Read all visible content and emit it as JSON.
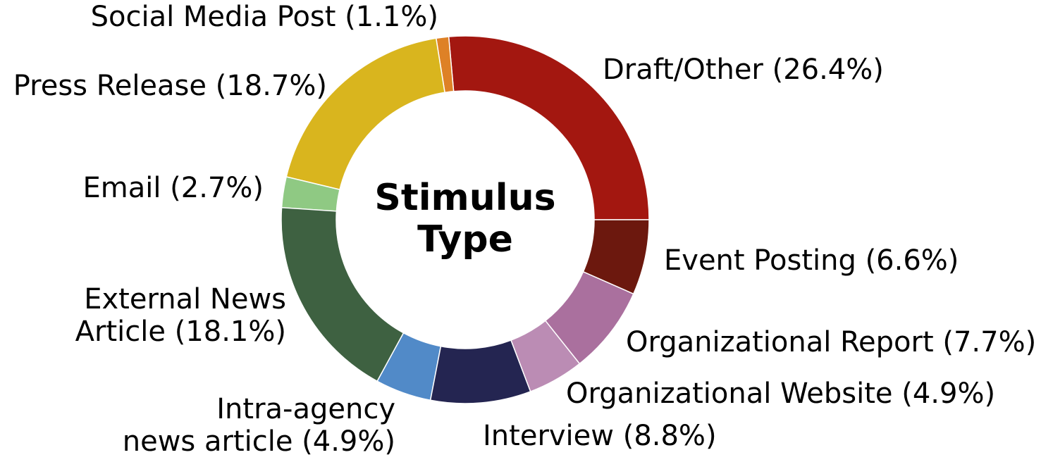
{
  "chart_data": {
    "type": "pie",
    "style": "donut",
    "center_label": [
      "Stimulus",
      "Type"
    ],
    "start": "3 o'clock",
    "direction": "counterclockwise",
    "slices": [
      {
        "label": "Draft/Other (26.4%)",
        "value": 26.4,
        "color": "#a31710"
      },
      {
        "label": "Social Media Post (1.1%)",
        "value": 1.1,
        "color": "#de8126"
      },
      {
        "label": "Press Release (18.7%)",
        "value": 18.7,
        "color": "#d9b51e"
      },
      {
        "label": "Email (2.7%)",
        "value": 2.7,
        "color": "#8fc983"
      },
      {
        "label": "External News Article (18.1%)",
        "value": 18.1,
        "color": "#3e6141",
        "lines": [
          "External News",
          "Article (18.1%)"
        ]
      },
      {
        "label": "Intra-agency news article (4.9%)",
        "value": 4.9,
        "color": "#518ac8",
        "lines": [
          "Intra-agency",
          "news article (4.9%)"
        ]
      },
      {
        "label": "Interview (8.8%)",
        "value": 8.8,
        "color": "#242551"
      },
      {
        "label": "Organizational Website (4.9%)",
        "value": 4.9,
        "color": "#bb8cb4"
      },
      {
        "label": "Organizational Report (7.7%)",
        "value": 7.7,
        "color": "#aa709e"
      },
      {
        "label": "Event Posting (6.6%)",
        "value": 6.6,
        "color": "#6c180e"
      }
    ]
  }
}
